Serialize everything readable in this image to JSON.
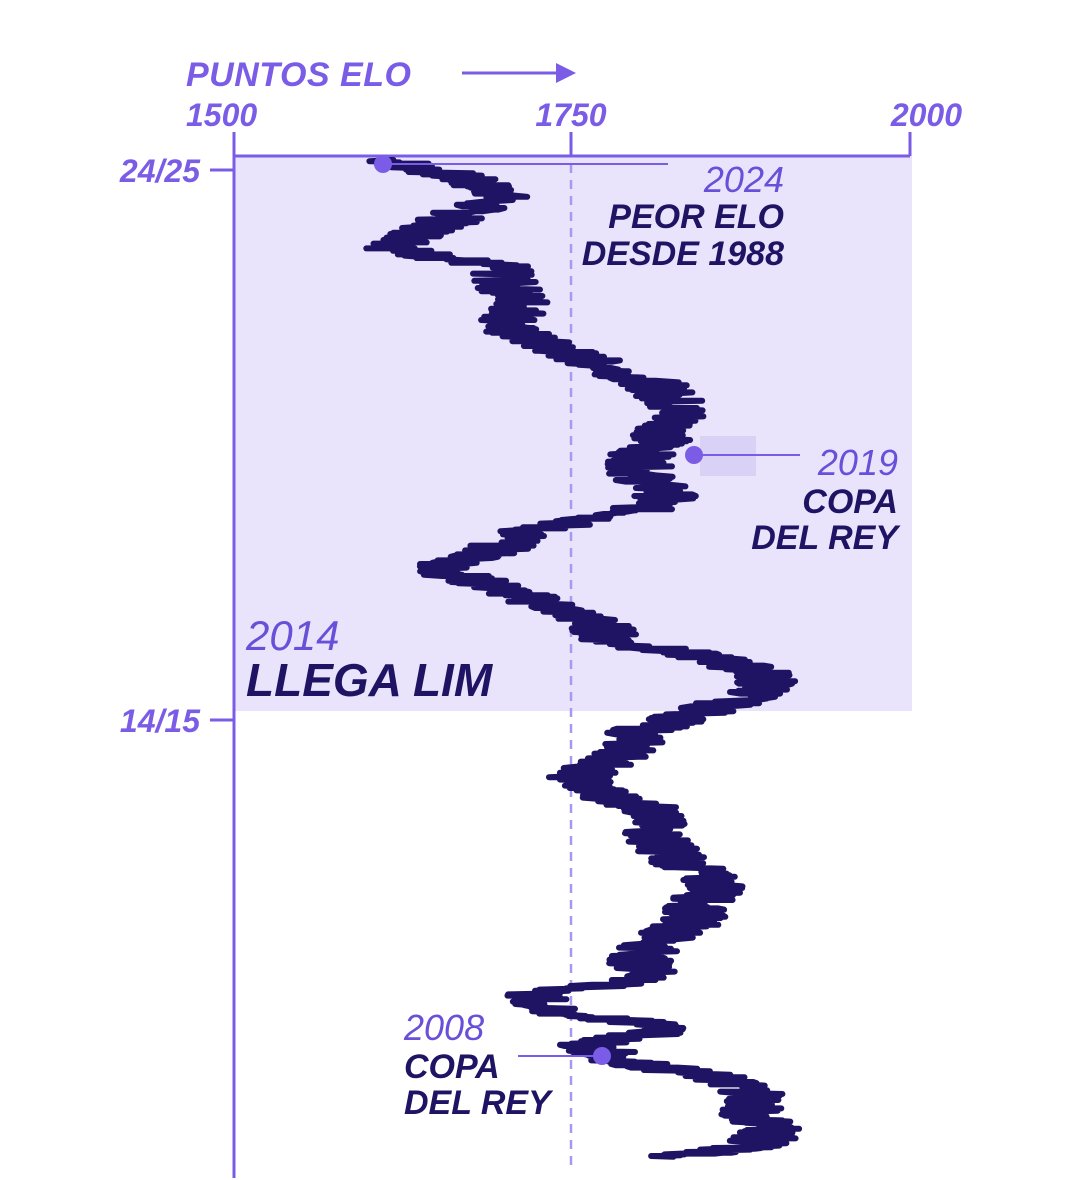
{
  "chart_data": {
    "type": "line",
    "orientation": "vertical-time",
    "x_axis_title": "PUNTOS ELO",
    "x_ticks": [
      1500,
      1750,
      2000
    ],
    "y_ticks": [
      "24/25",
      "14/15"
    ],
    "xlim": [
      1500,
      2000
    ],
    "reference_line": 1750,
    "highlight_band": {
      "from_season": "24/25",
      "to_year": 2014
    },
    "series": [
      {
        "points": [
          {
            "t": 2024.6,
            "elo": 1615
          },
          {
            "t": 2024.3,
            "elo": 1665
          },
          {
            "t": 2024.0,
            "elo": 1700
          },
          {
            "t": 2023.6,
            "elo": 1665
          },
          {
            "t": 2023.3,
            "elo": 1640
          },
          {
            "t": 2023.0,
            "elo": 1620
          },
          {
            "t": 2022.7,
            "elo": 1695
          },
          {
            "t": 2022.4,
            "elo": 1700
          },
          {
            "t": 2022.0,
            "elo": 1715
          },
          {
            "t": 2021.6,
            "elo": 1700
          },
          {
            "t": 2021.3,
            "elo": 1730
          },
          {
            "t": 2021.0,
            "elo": 1765
          },
          {
            "t": 2020.6,
            "elo": 1810
          },
          {
            "t": 2020.3,
            "elo": 1825
          },
          {
            "t": 2020.0,
            "elo": 1830
          },
          {
            "t": 2019.6,
            "elo": 1815
          },
          {
            "t": 2019.3,
            "elo": 1800
          },
          {
            "t": 2019.0,
            "elo": 1800
          },
          {
            "t": 2018.6,
            "elo": 1820
          },
          {
            "t": 2018.3,
            "elo": 1795
          },
          {
            "t": 2018.0,
            "elo": 1720
          },
          {
            "t": 2017.6,
            "elo": 1690
          },
          {
            "t": 2017.3,
            "elo": 1650
          },
          {
            "t": 2017.0,
            "elo": 1690
          },
          {
            "t": 2016.6,
            "elo": 1740
          },
          {
            "t": 2016.3,
            "elo": 1770
          },
          {
            "t": 2016.0,
            "elo": 1780
          },
          {
            "t": 2015.7,
            "elo": 1855
          },
          {
            "t": 2015.4,
            "elo": 1895
          },
          {
            "t": 2015.1,
            "elo": 1890
          },
          {
            "t": 2014.7,
            "elo": 1840
          },
          {
            "t": 2014.4,
            "elo": 1800
          },
          {
            "t": 2014.0,
            "elo": 1790
          },
          {
            "t": 2013.6,
            "elo": 1755
          },
          {
            "t": 2013.3,
            "elo": 1770
          },
          {
            "t": 2013.0,
            "elo": 1810
          },
          {
            "t": 2012.6,
            "elo": 1810
          },
          {
            "t": 2012.3,
            "elo": 1820
          },
          {
            "t": 2012.0,
            "elo": 1835
          },
          {
            "t": 2011.6,
            "elo": 1860
          },
          {
            "t": 2011.3,
            "elo": 1840
          },
          {
            "t": 2011.0,
            "elo": 1840
          },
          {
            "t": 2010.6,
            "elo": 1810
          },
          {
            "t": 2010.3,
            "elo": 1800
          },
          {
            "t": 2010.0,
            "elo": 1810
          },
          {
            "t": 2009.7,
            "elo": 1720
          },
          {
            "t": 2009.4,
            "elo": 1730
          },
          {
            "t": 2009.1,
            "elo": 1830
          },
          {
            "t": 2008.8,
            "elo": 1760
          },
          {
            "t": 2008.5,
            "elo": 1790
          },
          {
            "t": 2008.2,
            "elo": 1860
          },
          {
            "t": 2007.9,
            "elo": 1890
          },
          {
            "t": 2007.6,
            "elo": 1880
          },
          {
            "t": 2007.3,
            "elo": 1900
          },
          {
            "t": 2007.0,
            "elo": 1885
          },
          {
            "t": 2006.8,
            "elo": 1825
          }
        ]
      }
    ]
  },
  "annotations": {
    "a2024": {
      "year": "2024",
      "line1": "PEOR ELO",
      "line2": "DESDE 1988"
    },
    "a2019": {
      "year": "2019",
      "line1": "COPA",
      "line2": "DEL REY"
    },
    "a2014": {
      "year": "2014",
      "line1": "LLEGA LIM"
    },
    "a2008": {
      "year": "2008",
      "line1": "COPA",
      "line2": "DEL REY"
    }
  },
  "colors": {
    "accent": "#7b5ce6",
    "line": "#1f1464",
    "band": "#e9e4fb",
    "ref": "#a898ee"
  }
}
